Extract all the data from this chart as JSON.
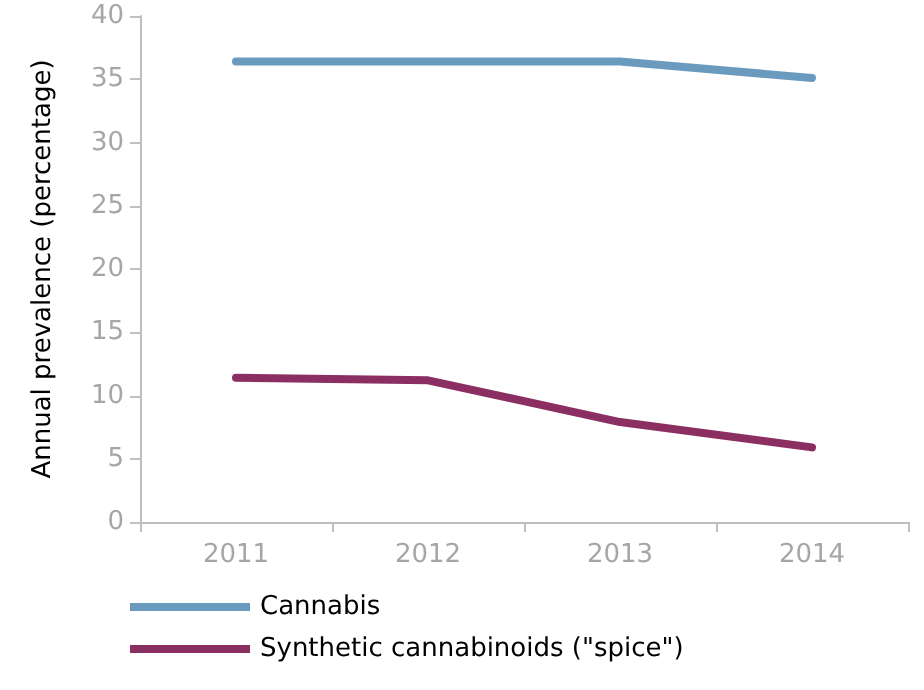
{
  "chart_data": {
    "type": "line",
    "ylabel": "Annual prevalence (percentage)",
    "categories": [
      "2011",
      "2012",
      "2013",
      "2014"
    ],
    "series": [
      {
        "name": "Cannabis",
        "color": "#6a9bbf",
        "values": [
          36.4,
          36.4,
          36.4,
          35.1
        ]
      },
      {
        "name": "Synthetic cannabinoids (\"spice\")",
        "color": "#8b2f62",
        "values": [
          11.4,
          11.2,
          7.9,
          5.9
        ]
      }
    ],
    "ylim": [
      0,
      40
    ],
    "yticks": [
      0,
      5,
      10,
      15,
      20,
      25,
      30,
      35,
      40
    ],
    "grid": false,
    "legend": "bottom",
    "marker": "none",
    "line_style": "solid"
  }
}
